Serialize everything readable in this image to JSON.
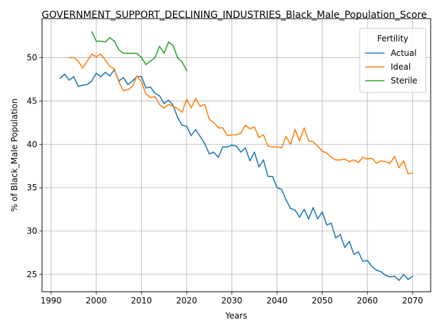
{
  "chart_data": {
    "type": "line",
    "title": "GOVERNMENT_SUPPORT_DECLINING_INDUSTRIES_Black_Male_Population_Score",
    "xlabel": "Years",
    "ylabel": "% of Black_Male Population",
    "xlim": [
      1988,
      2074
    ],
    "ylim": [
      23,
      54.5
    ],
    "xticks": [
      1990,
      2000,
      2010,
      2020,
      2030,
      2040,
      2050,
      2060,
      2070
    ],
    "yticks": [
      25,
      30,
      35,
      40,
      45,
      50
    ],
    "grid": true,
    "legend": {
      "title": "Fertility",
      "placement": "upper right"
    },
    "series": [
      {
        "name": "Actual",
        "color": "#1f77b4",
        "x": [
          1992,
          1993,
          1994,
          1995,
          1996,
          1997,
          1998,
          1999,
          2000,
          2001,
          2002,
          2003,
          2004,
          2005,
          2006,
          2007,
          2008,
          2009,
          2010,
          2011,
          2012,
          2013,
          2014,
          2015,
          2016,
          2017,
          2018,
          2019,
          2020,
          2021,
          2022,
          2023,
          2024,
          2025,
          2026,
          2027,
          2028,
          2029,
          2030,
          2031,
          2032,
          2033,
          2034,
          2035,
          2036,
          2037,
          2038,
          2039,
          2040,
          2041,
          2042,
          2043,
          2044,
          2045,
          2046,
          2047,
          2048,
          2049,
          2050,
          2051,
          2052,
          2053,
          2054,
          2055,
          2056,
          2057,
          2058,
          2059,
          2060,
          2061,
          2062,
          2063,
          2064,
          2065,
          2066,
          2067,
          2068,
          2069,
          2070
        ],
        "values": [
          47.6,
          48.1,
          47.4,
          47.8,
          46.7,
          46.8,
          46.9,
          47.3,
          48.2,
          47.8,
          48.3,
          47.9,
          48.6,
          47.3,
          47.7,
          46.9,
          47.3,
          47.8,
          47.8,
          46.5,
          46.6,
          45.9,
          45.6,
          44.7,
          45.1,
          44.5,
          43.1,
          42.2,
          42.1,
          41.0,
          41.7,
          40.9,
          40.1,
          38.9,
          39.1,
          38.5,
          39.7,
          39.7,
          39.9,
          39.8,
          39.1,
          39.6,
          38.1,
          39.1,
          37.4,
          38.2,
          36.3,
          36.3,
          35.0,
          34.8,
          33.6,
          32.6,
          32.4,
          31.6,
          32.5,
          31.4,
          32.7,
          31.4,
          32.2,
          30.7,
          30.9,
          29.2,
          29.6,
          28.1,
          28.8,
          27.3,
          27.6,
          26.5,
          26.6,
          25.9,
          25.5,
          25.3,
          24.9,
          24.7,
          24.8,
          24.3,
          25.0,
          24.4,
          24.8
        ]
      },
      {
        "name": "Ideal",
        "color": "#ff7f0e",
        "x": [
          1994,
          1995,
          1996,
          1997,
          1998,
          1999,
          2000,
          2001,
          2002,
          2003,
          2004,
          2005,
          2006,
          2007,
          2008,
          2009,
          2010,
          2011,
          2012,
          2013,
          2014,
          2015,
          2016,
          2017,
          2018,
          2019,
          2020,
          2021,
          2022,
          2023,
          2024,
          2025,
          2026,
          2027,
          2028,
          2029,
          2030,
          2031,
          2032,
          2033,
          2034,
          2035,
          2036,
          2037,
          2038,
          2039,
          2040,
          2041,
          2042,
          2043,
          2044,
          2045,
          2046,
          2047,
          2048,
          2049,
          2050,
          2051,
          2052,
          2053,
          2054,
          2055,
          2056,
          2057,
          2058,
          2059,
          2060,
          2061,
          2062,
          2063,
          2064,
          2065,
          2066,
          2067,
          2068,
          2069,
          2070
        ],
        "values": [
          50.0,
          50.0,
          49.6,
          48.8,
          49.6,
          50.4,
          50.1,
          50.4,
          49.7,
          49.0,
          48.7,
          47.2,
          46.2,
          46.3,
          46.7,
          47.9,
          47.2,
          45.8,
          45.4,
          45.5,
          44.6,
          44.2,
          44.6,
          44.4,
          44.1,
          43.7,
          45.2,
          44.2,
          45.3,
          44.4,
          44.6,
          42.9,
          42.5,
          41.9,
          41.9,
          41.0,
          41.1,
          41.1,
          41.3,
          42.2,
          41.8,
          42.0,
          40.8,
          41.1,
          39.8,
          39.7,
          39.7,
          39.6,
          40.9,
          40.0,
          41.7,
          40.4,
          41.9,
          40.4,
          40.3,
          39.8,
          39.2,
          39.0,
          38.5,
          38.2,
          38.2,
          38.3,
          38.0,
          38.2,
          37.9,
          38.5,
          38.3,
          38.4,
          37.8,
          38.1,
          38.0,
          37.8,
          38.6,
          37.3,
          38.1,
          36.6,
          36.7
        ]
      },
      {
        "name": "Sterile",
        "color": "#2ca02c",
        "x": [
          1999,
          2000,
          2001,
          2002,
          2003,
          2004,
          2005,
          2006,
          2007,
          2008,
          2009,
          2010,
          2011,
          2012,
          2013,
          2014,
          2015,
          2016,
          2017,
          2018,
          2019,
          2020
        ],
        "values": [
          53.0,
          51.9,
          51.9,
          51.8,
          52.3,
          51.9,
          50.9,
          50.5,
          50.5,
          50.5,
          50.5,
          50.0,
          49.2,
          49.6,
          50.0,
          51.3,
          50.5,
          51.8,
          51.4,
          50.0,
          49.5,
          48.5
        ]
      }
    ]
  }
}
